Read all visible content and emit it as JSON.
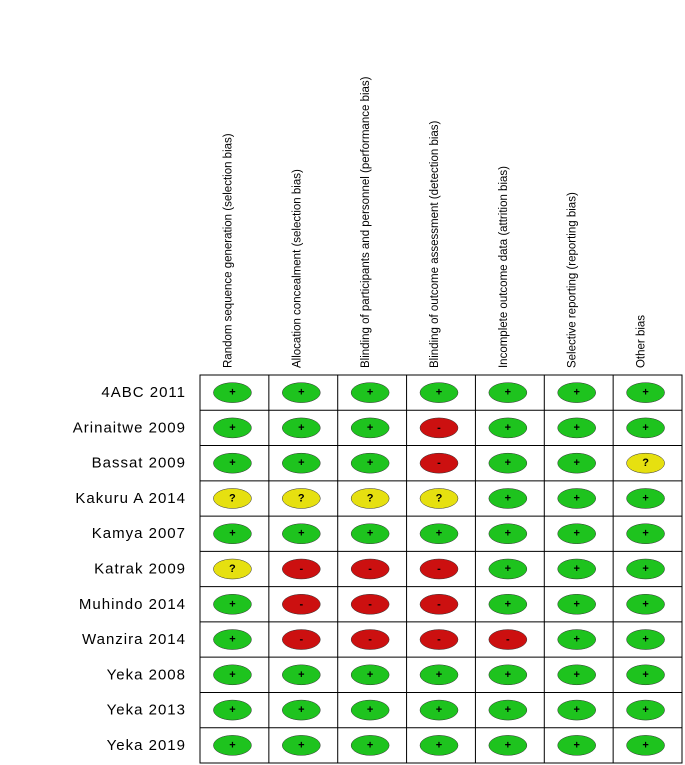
{
  "table": {
    "columns": [
      "Random sequence generation (selection bias)",
      "Allocation concealment (selection bias)",
      "Blinding of participants and personnel (performance bias)",
      "Blinding of outcome assessment (detection bias)",
      "Incomplete outcome data (attrition bias)",
      "Selective reporting (reporting bias)",
      "Other bias"
    ],
    "colors": {
      "+": "#1ec31e",
      "-": "#cc1010",
      "?": "#e6e010"
    },
    "rows": [
      {
        "study": "4ABC 2011",
        "judgments": [
          "+",
          "+",
          "+",
          "+",
          "+",
          "+",
          "+"
        ]
      },
      {
        "study": "Arinaitwe 2009",
        "judgments": [
          "+",
          "+",
          "+",
          "-",
          "+",
          "+",
          "+"
        ]
      },
      {
        "study": "Bassat 2009",
        "judgments": [
          "+",
          "+",
          "+",
          "-",
          "+",
          "+",
          "?"
        ]
      },
      {
        "study": "Kakuru A 2014",
        "judgments": [
          "?",
          "?",
          "?",
          "?",
          "+",
          "+",
          "+"
        ]
      },
      {
        "study": "Kamya 2007",
        "judgments": [
          "+",
          "+",
          "+",
          "+",
          "+",
          "+",
          "+"
        ]
      },
      {
        "study": "Katrak 2009",
        "judgments": [
          "?",
          "-",
          "-",
          "-",
          "+",
          "+",
          "+"
        ]
      },
      {
        "study": "Muhindo 2014",
        "judgments": [
          "+",
          "-",
          "-",
          "-",
          "+",
          "+",
          "+"
        ]
      },
      {
        "study": "Wanzira 2014",
        "judgments": [
          "+",
          "-",
          "-",
          "-",
          "-",
          "+",
          "+"
        ]
      },
      {
        "study": "Yeka 2008",
        "judgments": [
          "+",
          "+",
          "+",
          "+",
          "+",
          "+",
          "+"
        ]
      },
      {
        "study": "Yeka 2013",
        "judgments": [
          "+",
          "+",
          "+",
          "+",
          "+",
          "+",
          "+"
        ]
      },
      {
        "study": "Yeka 2019",
        "judgments": [
          "+",
          "+",
          "+",
          "+",
          "+",
          "+",
          "+"
        ]
      }
    ]
  }
}
